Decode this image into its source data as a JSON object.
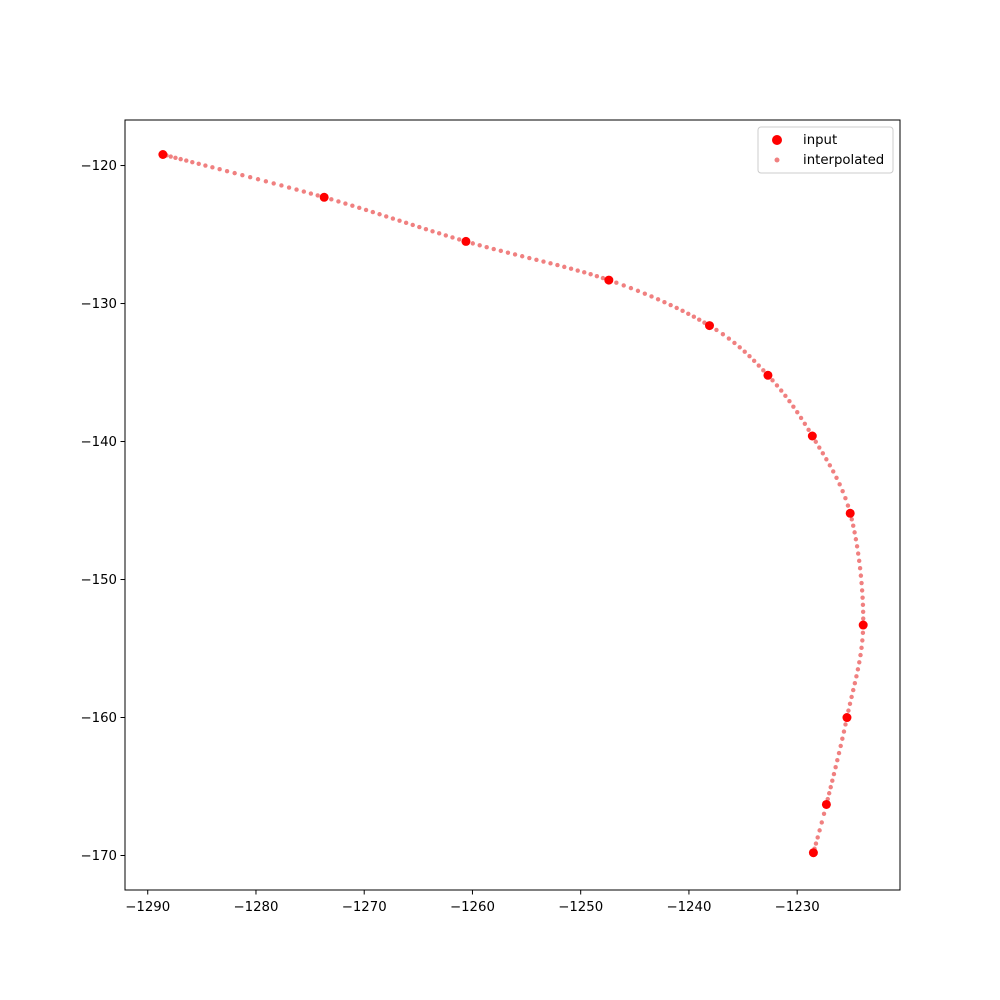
{
  "chart_data": {
    "type": "scatter",
    "title": "",
    "xlabel": "",
    "ylabel": "",
    "xlim": [
      -1292.1,
      -1220.5
    ],
    "ylim": [
      -172.5,
      -116.7
    ],
    "xticks": [
      -1290,
      -1280,
      -1270,
      -1260,
      -1250,
      -1240,
      -1230
    ],
    "yticks": [
      -120,
      -130,
      -140,
      -150,
      -160,
      -170
    ],
    "grid": false,
    "legend_position": "top-right",
    "series": [
      {
        "name": "input",
        "color": "#ff0000",
        "x": [
          -1288.6,
          -1273.7,
          -1260.6,
          -1247.4,
          -1238.1,
          -1232.7,
          -1228.6,
          -1225.1,
          -1223.9,
          -1225.4,
          -1227.3,
          -1228.5
        ],
        "y": [
          -119.2,
          -122.3,
          -125.5,
          -128.3,
          -131.6,
          -135.2,
          -139.6,
          -145.2,
          -153.3,
          -160.0,
          -166.3,
          -169.8
        ]
      },
      {
        "name": "interpolated",
        "color": "#f08080",
        "x": [
          -1288.6,
          -1273.7,
          -1260.6,
          -1247.4,
          -1238.1,
          -1232.7,
          -1228.6,
          -1225.1,
          -1223.9,
          -1225.4,
          -1227.3,
          -1228.5
        ],
        "y": [
          -119.2,
          -122.3,
          -125.5,
          -128.3,
          -131.6,
          -135.2,
          -139.6,
          -145.2,
          -153.3,
          -160.0,
          -166.3,
          -169.8
        ]
      }
    ]
  }
}
